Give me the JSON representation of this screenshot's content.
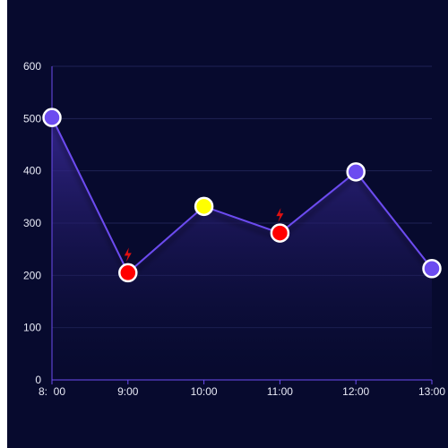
{
  "chart_data": {
    "type": "area",
    "title": "",
    "xlabel": "",
    "ylabel": "",
    "categories": [
      "8:00",
      "9:00",
      "10:00",
      "11:00",
      "12:00",
      "13:00"
    ],
    "x_tick_labels": [
      "8:  00",
      "9:00",
      "10:00",
      "11:00",
      "12:00",
      "13:00"
    ],
    "y_ticks": [
      0,
      100,
      200,
      300,
      400,
      500,
      600
    ],
    "ylim": [
      0,
      600
    ],
    "grid": true,
    "series": [
      {
        "values": [
          502,
          205,
          332,
          281,
          398,
          213
        ],
        "point_colors": [
          "#6c4cf0",
          "#ff0000",
          "#ffff00",
          "#ff0000",
          "#6c4cf0",
          "#6c4cf0"
        ],
        "alert_markers": [
          false,
          true,
          false,
          true,
          false,
          false
        ]
      }
    ],
    "colors": {
      "background": "#070a2e",
      "line": "#6c4cf0",
      "axis": "#6c4cf0",
      "grid": "#1f2356",
      "marker_stroke": "#ffffff",
      "alert_icon": "#e01010"
    }
  }
}
